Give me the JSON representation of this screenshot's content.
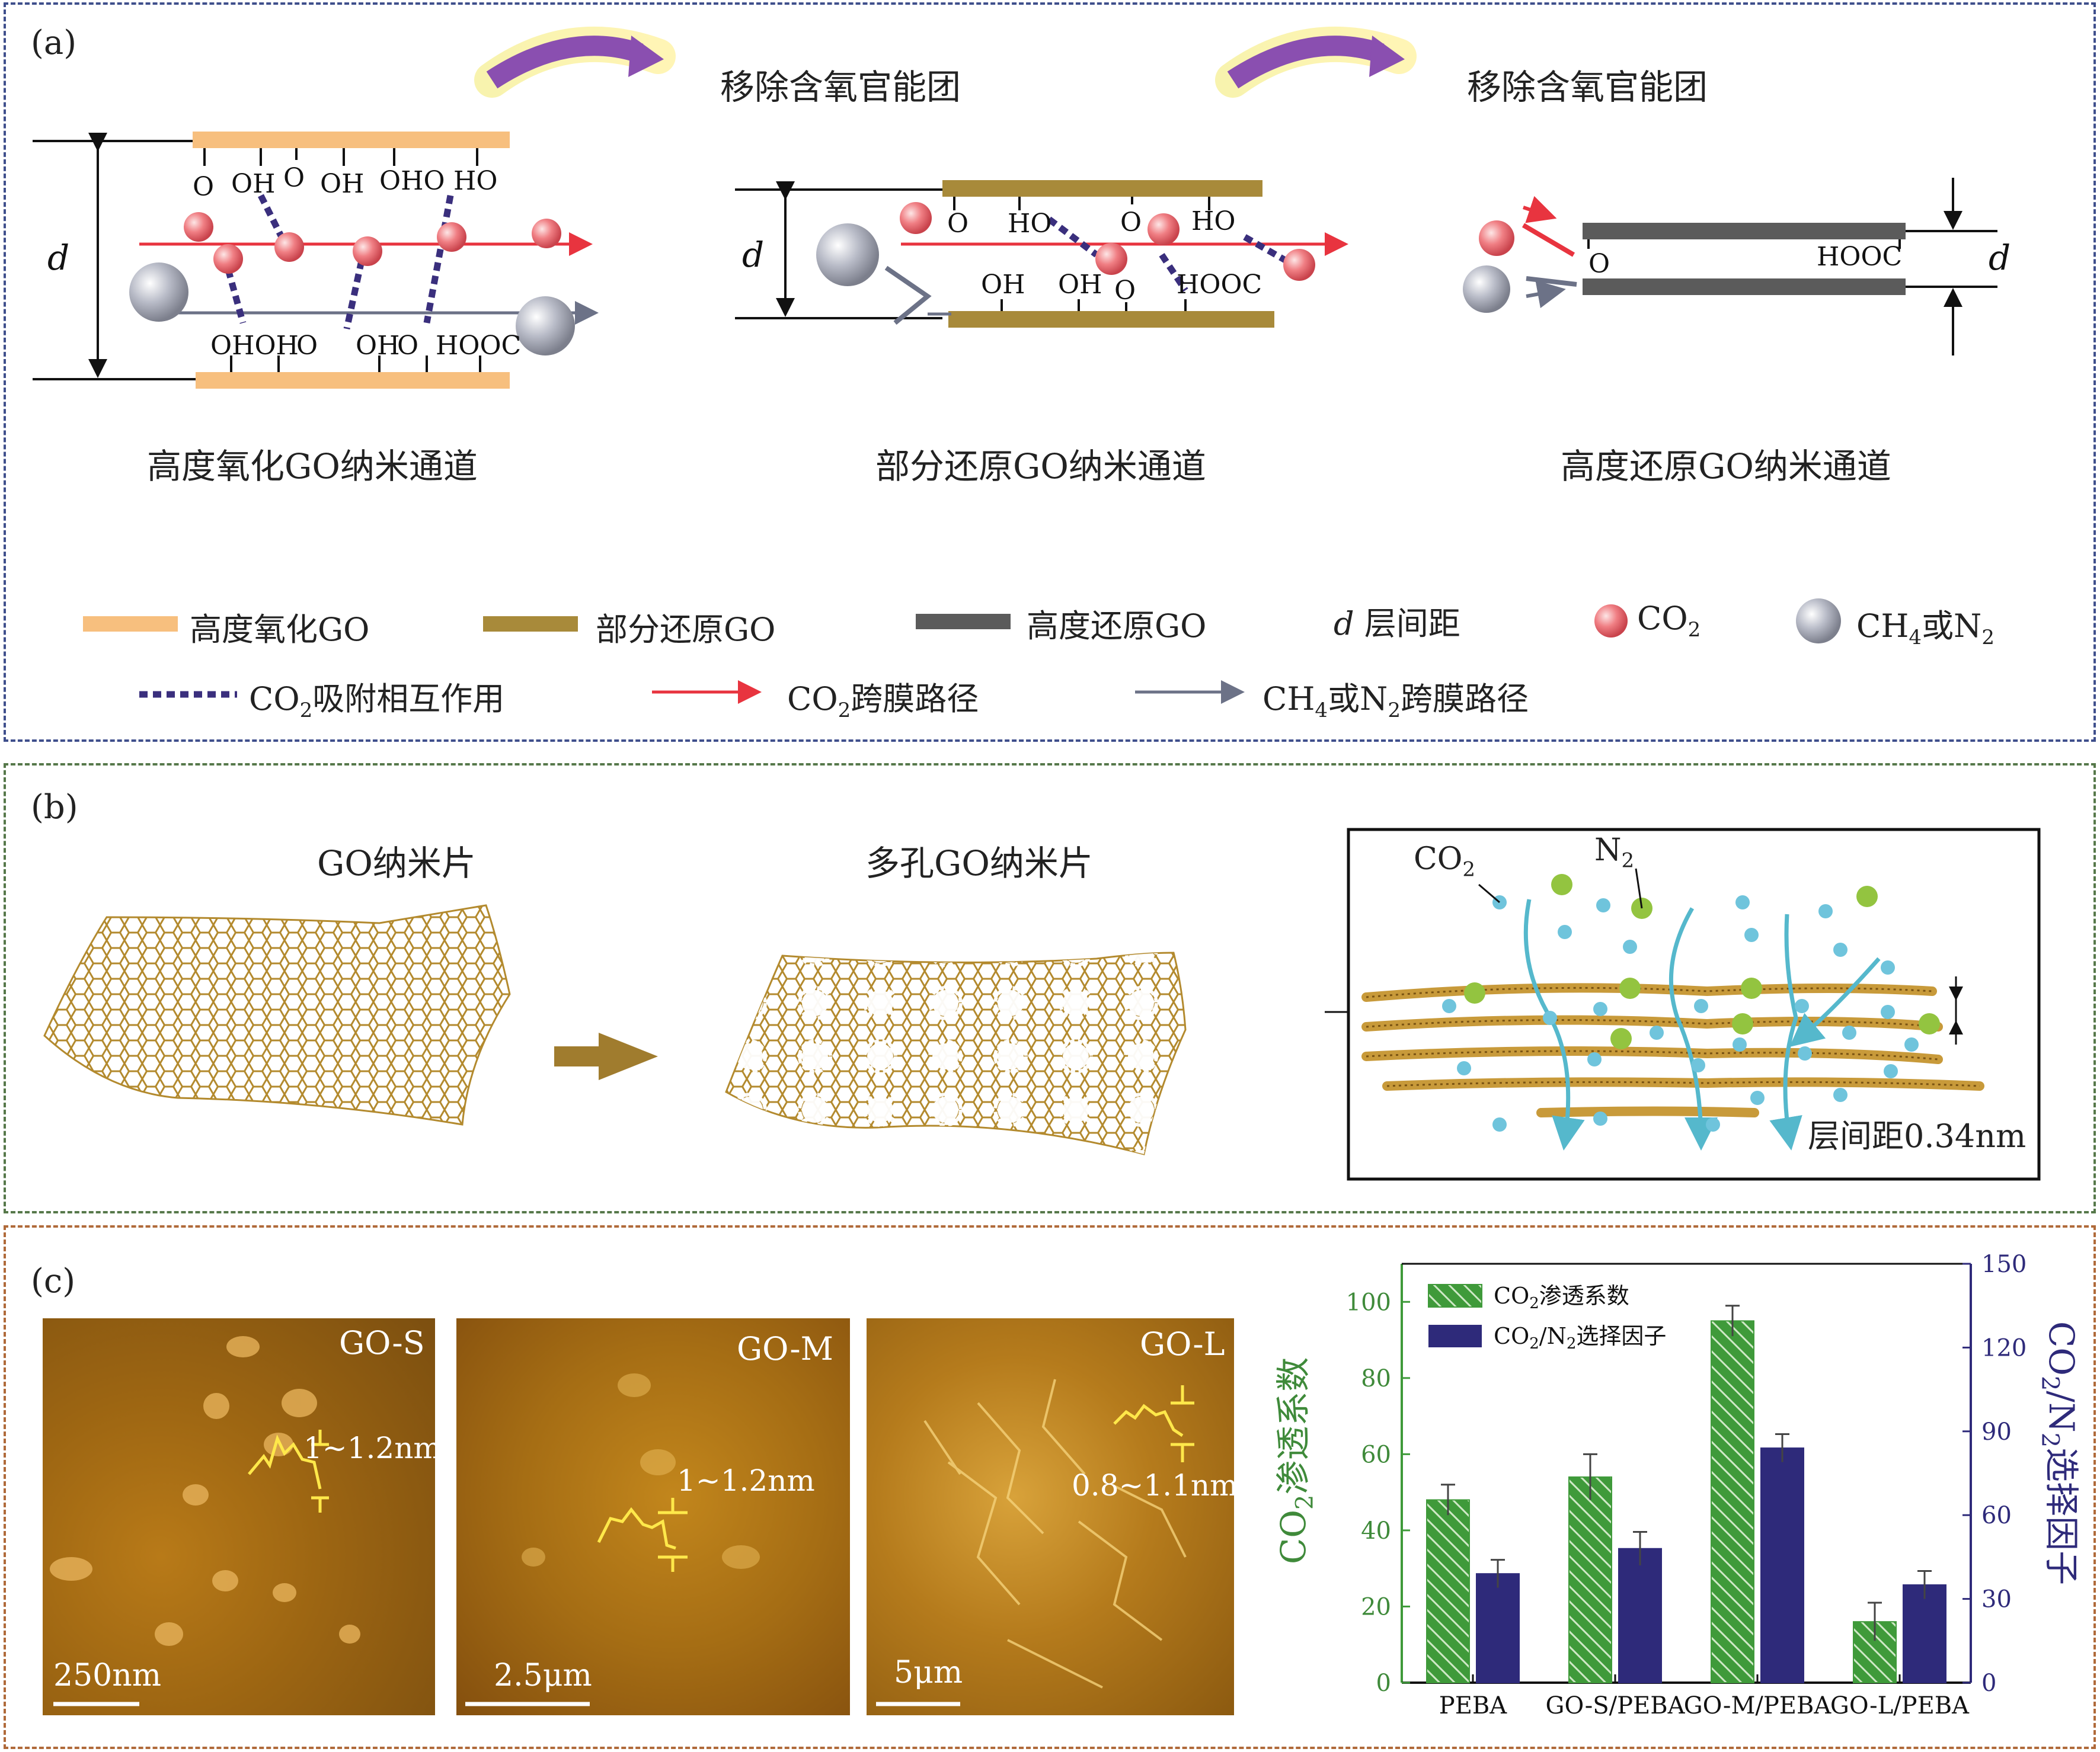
{
  "panel_a": {
    "label": "(a)",
    "arrow_text_1": "移除含氧官能团",
    "arrow_text_2": "移除含氧官能团",
    "d_label": "d",
    "caption_1": "高度氧化GO纳米通道",
    "caption_2": "部分还原GO纳米通道",
    "caption_3": "高度还原GO纳米通道",
    "groups": {
      "top1": [
        "O",
        "OH",
        "O",
        "OH",
        "OHO",
        "HO"
      ],
      "bottom1": [
        "OHOH",
        "O",
        "OH",
        "O",
        "HOOC"
      ],
      "top2": [
        "O",
        "HO",
        "O",
        "HO"
      ],
      "bottom2": [
        "OH",
        "OH",
        "O",
        "HOOC"
      ],
      "top3": [
        "O"
      ],
      "right3": [
        "HOOC"
      ]
    },
    "legend": {
      "ho_go": "高度氧化GO",
      "pr_go": "部分还原GO",
      "hr_go": "高度还原GO",
      "d_item": "d",
      "d_text": "层间距",
      "co2": "CO",
      "co2_sub": "2",
      "ch4_a": "CH",
      "ch4_sub": "4",
      "ch4_b": "或N",
      "n2_sub": "2",
      "adsorb_a": "CO",
      "adsorb_sub": "2",
      "adsorb_b": "吸附相互作用",
      "co2path_a": "CO",
      "co2path_sub": "2",
      "co2path_b": "跨膜路径",
      "ch4path_a": "CH",
      "ch4path_sub": "4",
      "ch4path_b": "或N",
      "ch4path_sub2": "2",
      "ch4path_c": "跨膜路径"
    },
    "colors": {
      "ho_go": "#f7bf7e",
      "pr_go": "#a88a3a",
      "hr_go": "#5b5b5b",
      "co2_path": "#e8343f",
      "ch4_path": "#6c7287",
      "adsorb": "#3a2f7d",
      "arrow": "#8a4fb0"
    }
  },
  "panel_b": {
    "label": "(b)",
    "sheet1": "GO纳米片",
    "sheet2": "多孔GO纳米片",
    "co2_a": "CO",
    "co2_sub": "2",
    "n2_a": "N",
    "n2_sub": "2",
    "spacing": "层间距0.34nm"
  },
  "panel_c": {
    "label": "(c)",
    "afm": [
      {
        "name": "GO-S",
        "height": "1~1.2nm",
        "scale": "250nm"
      },
      {
        "name": "GO-M",
        "height": "1~1.2nm",
        "scale": "2.5μm"
      },
      {
        "name": "GO-L",
        "height": "0.8~1.1nm",
        "scale": "5μm"
      }
    ]
  },
  "chart_data": {
    "type": "bar",
    "categories": [
      "PEBA",
      "GO-S/PEBA",
      "GO-M/PEBA",
      "GO-L/PEBA"
    ],
    "series": [
      {
        "name_a": "CO",
        "name_sub": "2",
        "name_b": "渗透系数",
        "axis": "left",
        "values": [
          48,
          54,
          95,
          16
        ],
        "errors": [
          4,
          6,
          4,
          5
        ],
        "color": "#3f9a3a"
      },
      {
        "name_a": "CO",
        "name_sub": "2",
        "name_b": "/N",
        "name_sub2": "2",
        "name_c": "选择因子",
        "axis": "right",
        "values": [
          39,
          48,
          84,
          35
        ],
        "errors": [
          5,
          6,
          5,
          5
        ],
        "color": "#2e2a7a"
      }
    ],
    "ylabel_left_a": "CO",
    "ylabel_left_sub": "2",
    "ylabel_left_b": "渗透系数",
    "ylabel_right_a": "CO",
    "ylabel_right_sub": "2",
    "ylabel_right_b": "/N",
    "ylabel_right_sub2": "2",
    "ylabel_right_c": "选择因子",
    "ylim_left": [
      0,
      110
    ],
    "ylim_right": [
      0,
      150
    ],
    "yticks_left": [
      "0",
      "20",
      "40",
      "60",
      "80",
      "100"
    ],
    "yticks_right": [
      "0",
      "30",
      "60",
      "90",
      "120",
      "150"
    ],
    "legend_position": "top-left"
  }
}
